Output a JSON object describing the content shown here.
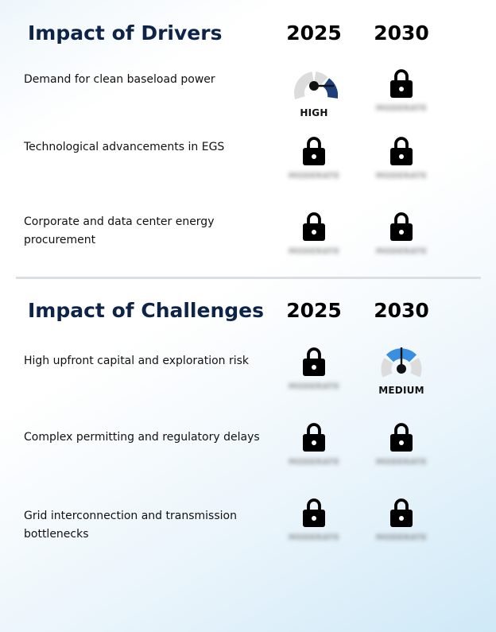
{
  "drivers": {
    "title": "Impact of Drivers",
    "years": [
      "2025",
      "2030"
    ],
    "rows": [
      {
        "label": "Demand for clean baseload power",
        "cells": [
          {
            "kind": "gauge",
            "level": "HIGH",
            "color": "#1f3f7a"
          },
          {
            "kind": "locked",
            "hidden_label": "MODERATE"
          }
        ]
      },
      {
        "label": "Technological advancements in EGS",
        "cells": [
          {
            "kind": "locked",
            "hidden_label": "MODERATE"
          },
          {
            "kind": "locked",
            "hidden_label": "MODERATE"
          }
        ]
      },
      {
        "label": "Corporate and data center energy procurement",
        "cells": [
          {
            "kind": "locked",
            "hidden_label": "MODERATE"
          },
          {
            "kind": "locked",
            "hidden_label": "MODERATE"
          }
        ]
      }
    ]
  },
  "challenges": {
    "title": "Impact of Challenges",
    "years": [
      "2025",
      "2030"
    ],
    "rows": [
      {
        "label": "High upfront capital and exploration risk",
        "cells": [
          {
            "kind": "locked",
            "hidden_label": "MODERATE"
          },
          {
            "kind": "gauge",
            "level": "MEDIUM",
            "color": "#3a8ee0"
          }
        ]
      },
      {
        "label": "Complex permitting and regulatory delays",
        "cells": [
          {
            "kind": "locked",
            "hidden_label": "MODERATE"
          },
          {
            "kind": "locked",
            "hidden_label": "MODERATE"
          }
        ]
      },
      {
        "label": "Grid interconnection and transmission bottlenecks",
        "cells": [
          {
            "kind": "locked",
            "hidden_label": "MODERATE"
          },
          {
            "kind": "locked",
            "hidden_label": "MODERATE"
          }
        ]
      }
    ]
  },
  "icons": {
    "lock": "lock-icon",
    "gauge": "gauge-icon"
  }
}
